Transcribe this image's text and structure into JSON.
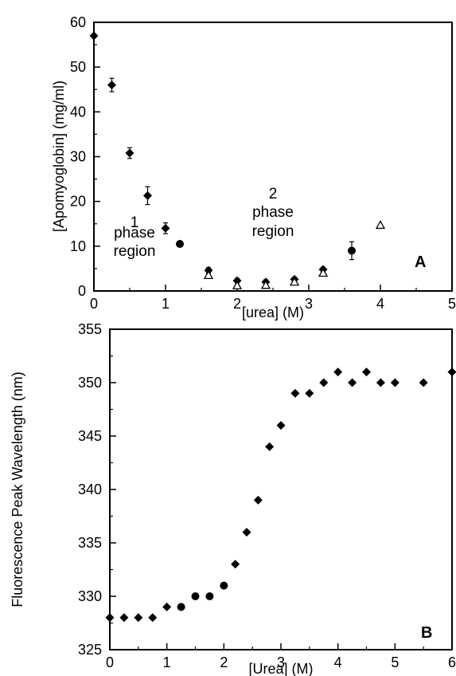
{
  "chart_data": [
    {
      "panel": "A",
      "type": "scatter",
      "title": "",
      "xlabel": "[urea] (M)",
      "ylabel": "[Apomyoglobin]  (mg/ml)",
      "xlim": [
        0,
        5
      ],
      "ylim": [
        0,
        60
      ],
      "xticks": [
        0,
        1,
        2,
        3,
        4,
        5
      ],
      "yticks": [
        0,
        10,
        20,
        30,
        40,
        50,
        60
      ],
      "grid": false,
      "panel_label": "A",
      "annotations": [
        {
          "label": "1",
          "lines": [
            "1",
            "phase",
            "region"
          ]
        },
        {
          "label": "2",
          "lines": [
            "2",
            "phase",
            "region"
          ]
        }
      ],
      "series": [
        {
          "marker": "diamond",
          "points": [
            {
              "x": 0.0,
              "y": 57,
              "err": 0
            },
            {
              "x": 0.25,
              "y": 46,
              "err": 1.5
            },
            {
              "x": 0.5,
              "y": 30.8,
              "err": 1.2
            },
            {
              "x": 0.75,
              "y": 21.3,
              "err": 2.0
            },
            {
              "x": 1.0,
              "y": 14,
              "err": 1.2
            },
            {
              "x": 1.6,
              "y": 4.6,
              "err": 0.6
            },
            {
              "x": 2.0,
              "y": 2.3,
              "err": 0.5
            },
            {
              "x": 2.4,
              "y": 2.0,
              "err": 0.5
            },
            {
              "x": 2.8,
              "y": 2.6,
              "err": 0.5
            },
            {
              "x": 3.2,
              "y": 4.8,
              "err": 0.5
            }
          ]
        },
        {
          "marker": "circle",
          "points": [
            {
              "x": 1.2,
              "y": 10.5,
              "err": 0
            },
            {
              "x": 3.6,
              "y": 9.0,
              "err": 2.0
            }
          ]
        },
        {
          "marker": "triangle-open",
          "points": [
            {
              "x": 1.6,
              "y": 3.5
            },
            {
              "x": 2.0,
              "y": 1.2
            },
            {
              "x": 2.4,
              "y": 1.3
            },
            {
              "x": 2.8,
              "y": 2.0
            },
            {
              "x": 3.2,
              "y": 4.0
            },
            {
              "x": 4.0,
              "y": 14.7
            }
          ]
        }
      ]
    },
    {
      "panel": "B",
      "type": "scatter",
      "title": "",
      "xlabel": "[Urea] (M)",
      "ylabel": "Fluorescence Peak Wavelength (nm)",
      "xlim": [
        0,
        6
      ],
      "ylim": [
        325,
        355
      ],
      "xticks": [
        0,
        1,
        2,
        3,
        4,
        5,
        6
      ],
      "yticks": [
        325,
        330,
        335,
        340,
        345,
        350,
        355
      ],
      "grid": false,
      "panel_label": "B",
      "series": [
        {
          "marker": "diamond",
          "points": [
            {
              "x": 0.0,
              "y": 328
            },
            {
              "x": 0.25,
              "y": 328
            },
            {
              "x": 0.5,
              "y": 328
            },
            {
              "x": 0.75,
              "y": 328
            },
            {
              "x": 1.0,
              "y": 329
            },
            {
              "x": 2.2,
              "y": 333
            },
            {
              "x": 2.4,
              "y": 336
            },
            {
              "x": 2.6,
              "y": 339
            },
            {
              "x": 2.8,
              "y": 344
            },
            {
              "x": 3.0,
              "y": 346
            },
            {
              "x": 3.25,
              "y": 349
            },
            {
              "x": 3.5,
              "y": 349
            },
            {
              "x": 3.75,
              "y": 350
            },
            {
              "x": 4.0,
              "y": 351
            },
            {
              "x": 4.25,
              "y": 350
            },
            {
              "x": 4.5,
              "y": 351
            },
            {
              "x": 4.75,
              "y": 350
            },
            {
              "x": 5.0,
              "y": 350
            },
            {
              "x": 5.5,
              "y": 350
            },
            {
              "x": 6.0,
              "y": 351
            }
          ]
        },
        {
          "marker": "circle",
          "points": [
            {
              "x": 1.25,
              "y": 329
            },
            {
              "x": 1.5,
              "y": 330
            },
            {
              "x": 1.75,
              "y": 330
            },
            {
              "x": 2.0,
              "y": 331
            }
          ]
        }
      ]
    }
  ]
}
